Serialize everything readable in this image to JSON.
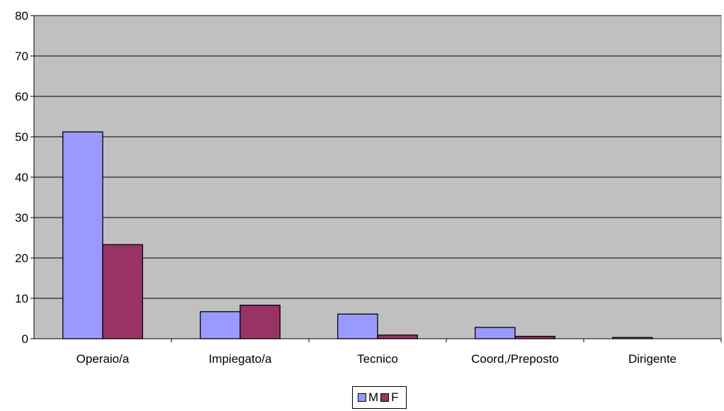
{
  "chart_data": {
    "type": "bar",
    "title": "",
    "xlabel": "",
    "ylabel": "",
    "categories": [
      "Operaio/a",
      "Impiegato/a",
      "Tecnico",
      "Coord,/Preposto",
      "Dirigente"
    ],
    "series": [
      {
        "name": "M",
        "color": "#9999ff",
        "values": [
          51.2,
          6.7,
          6.1,
          2.8,
          0.3
        ]
      },
      {
        "name": "F",
        "color": "#993366",
        "values": [
          23.3,
          8.3,
          0.9,
          0.6,
          0
        ]
      }
    ],
    "ylim": [
      0,
      80
    ],
    "yticks": [
      0,
      10,
      20,
      30,
      40,
      50,
      60,
      70,
      80
    ],
    "grid": true,
    "plot_background": "#c0c0c0",
    "legend_position": "bottom"
  }
}
